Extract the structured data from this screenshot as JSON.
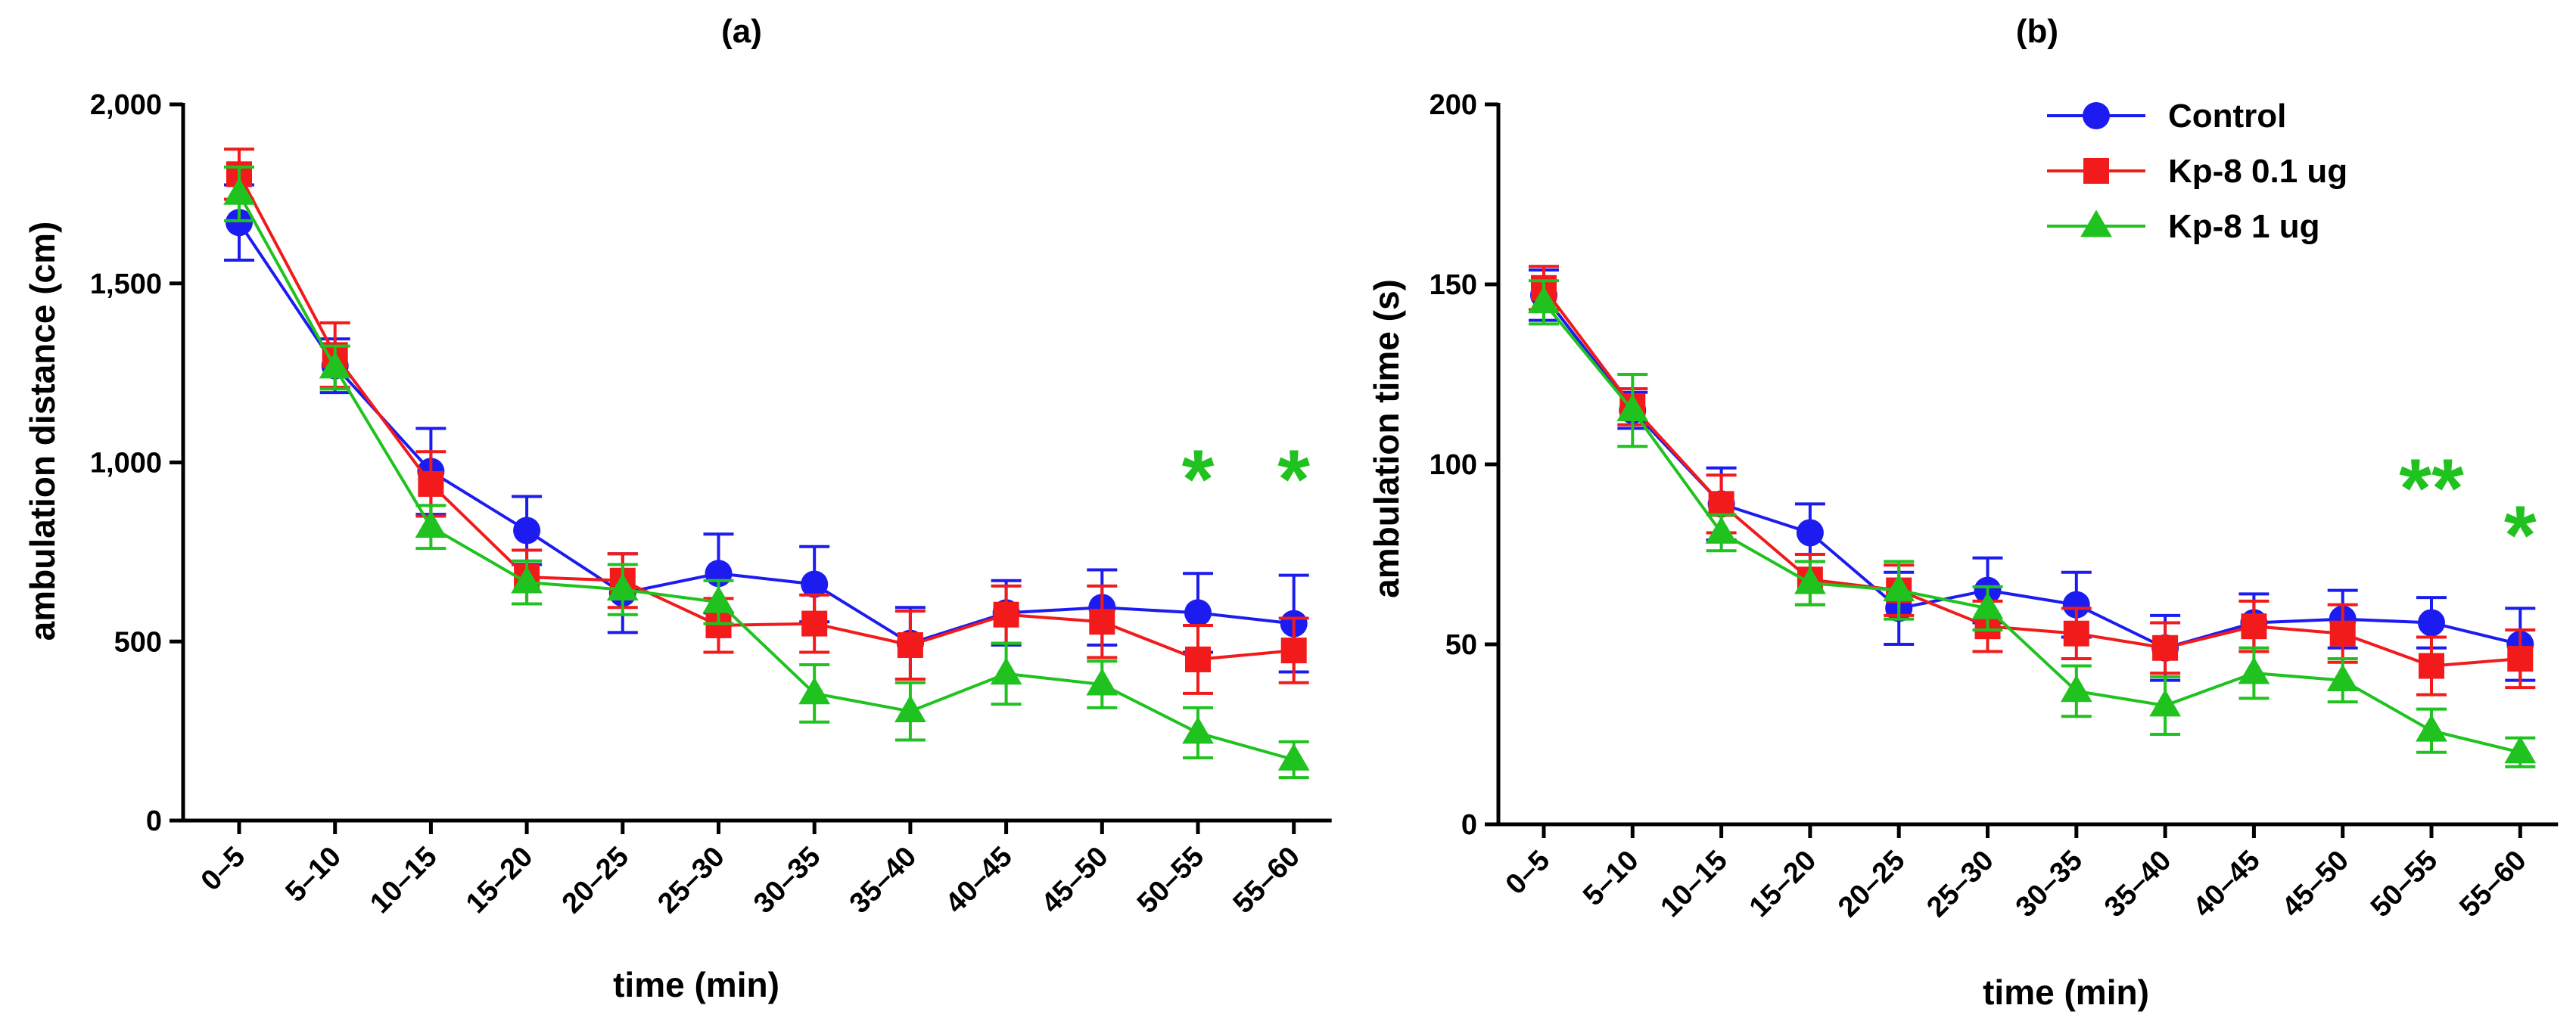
{
  "colors": {
    "Control": "#1c1cf0",
    "Kp-8 0.1 ug": "#f21a1a",
    "Kp-8 1 ug": "#1fc21f",
    "axis": "#000000"
  },
  "legend": {
    "placement": "top-right of panel (b)",
    "items": [
      {
        "label": "Control",
        "marker": "circle"
      },
      {
        "label": "Kp-8 0.1 ug",
        "marker": "square"
      },
      {
        "label": "Kp-8 1 ug",
        "marker": "triangle"
      }
    ]
  },
  "chart_data": [
    {
      "type": "line",
      "title": "(a)",
      "xlabel": "time (min)",
      "ylabel": "ambulation distance (cm)",
      "ylim": [
        0,
        2000
      ],
      "yticks": [
        0,
        500,
        1000,
        1500,
        2000
      ],
      "ytick_labels": [
        "0",
        "500",
        "1,000",
        "1,500",
        "2,000"
      ],
      "categories": [
        "0–5",
        "5–10",
        "10–15",
        "15–20",
        "20–25",
        "25–30",
        "30–35",
        "35–40",
        "40–45",
        "45–50",
        "50–55",
        "55–60"
      ],
      "series": [
        {
          "name": "Control",
          "marker": "circle",
          "values": [
            1670,
            1270,
            975,
            810,
            635,
            690,
            660,
            495,
            580,
            595,
            580,
            550
          ],
          "errors": [
            105,
            75,
            120,
            95,
            110,
            110,
            105,
            100,
            90,
            105,
            110,
            135
          ]
        },
        {
          "name": "Kp-8 0.1 ug",
          "marker": "square",
          "values": [
            1805,
            1300,
            940,
            680,
            670,
            545,
            550,
            490,
            575,
            555,
            450,
            475
          ],
          "errors": [
            70,
            90,
            90,
            75,
            75,
            75,
            80,
            95,
            80,
            100,
            95,
            90
          ]
        },
        {
          "name": "Kp-8 1 ug",
          "marker": "triangle",
          "values": [
            1750,
            1265,
            820,
            665,
            645,
            610,
            355,
            305,
            410,
            380,
            245,
            170
          ],
          "errors": [
            75,
            60,
            60,
            60,
            70,
            60,
            80,
            80,
            85,
            65,
            70,
            50
          ]
        }
      ],
      "annotations": [
        {
          "text": "*",
          "category": "50–55",
          "y": 1000
        },
        {
          "text": "*",
          "category": "55–60",
          "y": 1000
        }
      ]
    },
    {
      "type": "line",
      "title": "(b)",
      "xlabel": "time (min)",
      "ylabel": "ambulation time (s)",
      "ylim": [
        0,
        200
      ],
      "yticks": [
        0,
        50,
        100,
        150,
        200
      ],
      "ytick_labels": [
        "0",
        "50",
        "100",
        "150",
        "200"
      ],
      "categories": [
        "0–5",
        "5–10",
        "10–15",
        "15–20",
        "20–25",
        "25–30",
        "30–35",
        "35–40",
        "40–45",
        "45–50",
        "50–55",
        "55–60"
      ],
      "series": [
        {
          "name": "Control",
          "marker": "circle",
          "values": [
            147,
            115,
            89,
            81,
            60,
            65,
            61,
            49,
            56,
            57,
            56,
            50
          ],
          "errors": [
            7,
            5,
            10,
            8,
            10,
            9,
            9,
            9,
            8,
            8,
            7,
            10
          ]
        },
        {
          "name": "Kp-8 0.1 ug",
          "marker": "square",
          "values": [
            149,
            116,
            89,
            68,
            65,
            55,
            53,
            49,
            55,
            53,
            44,
            46
          ],
          "errors": [
            6,
            5,
            8,
            7,
            7,
            7,
            7,
            7,
            7,
            8,
            8,
            8
          ]
        },
        {
          "name": "Kp-8 1 ug",
          "marker": "triangle",
          "values": [
            145,
            115,
            81,
            67,
            65,
            60,
            37,
            33,
            42,
            40,
            26,
            20
          ],
          "errors": [
            6,
            10,
            5,
            6,
            8,
            6,
            7,
            8,
            7,
            6,
            6,
            4
          ]
        }
      ],
      "annotations": [
        {
          "text": "**",
          "category": "50–55",
          "y": 98
        },
        {
          "text": "*",
          "category": "55–60",
          "y": 85
        }
      ]
    }
  ]
}
